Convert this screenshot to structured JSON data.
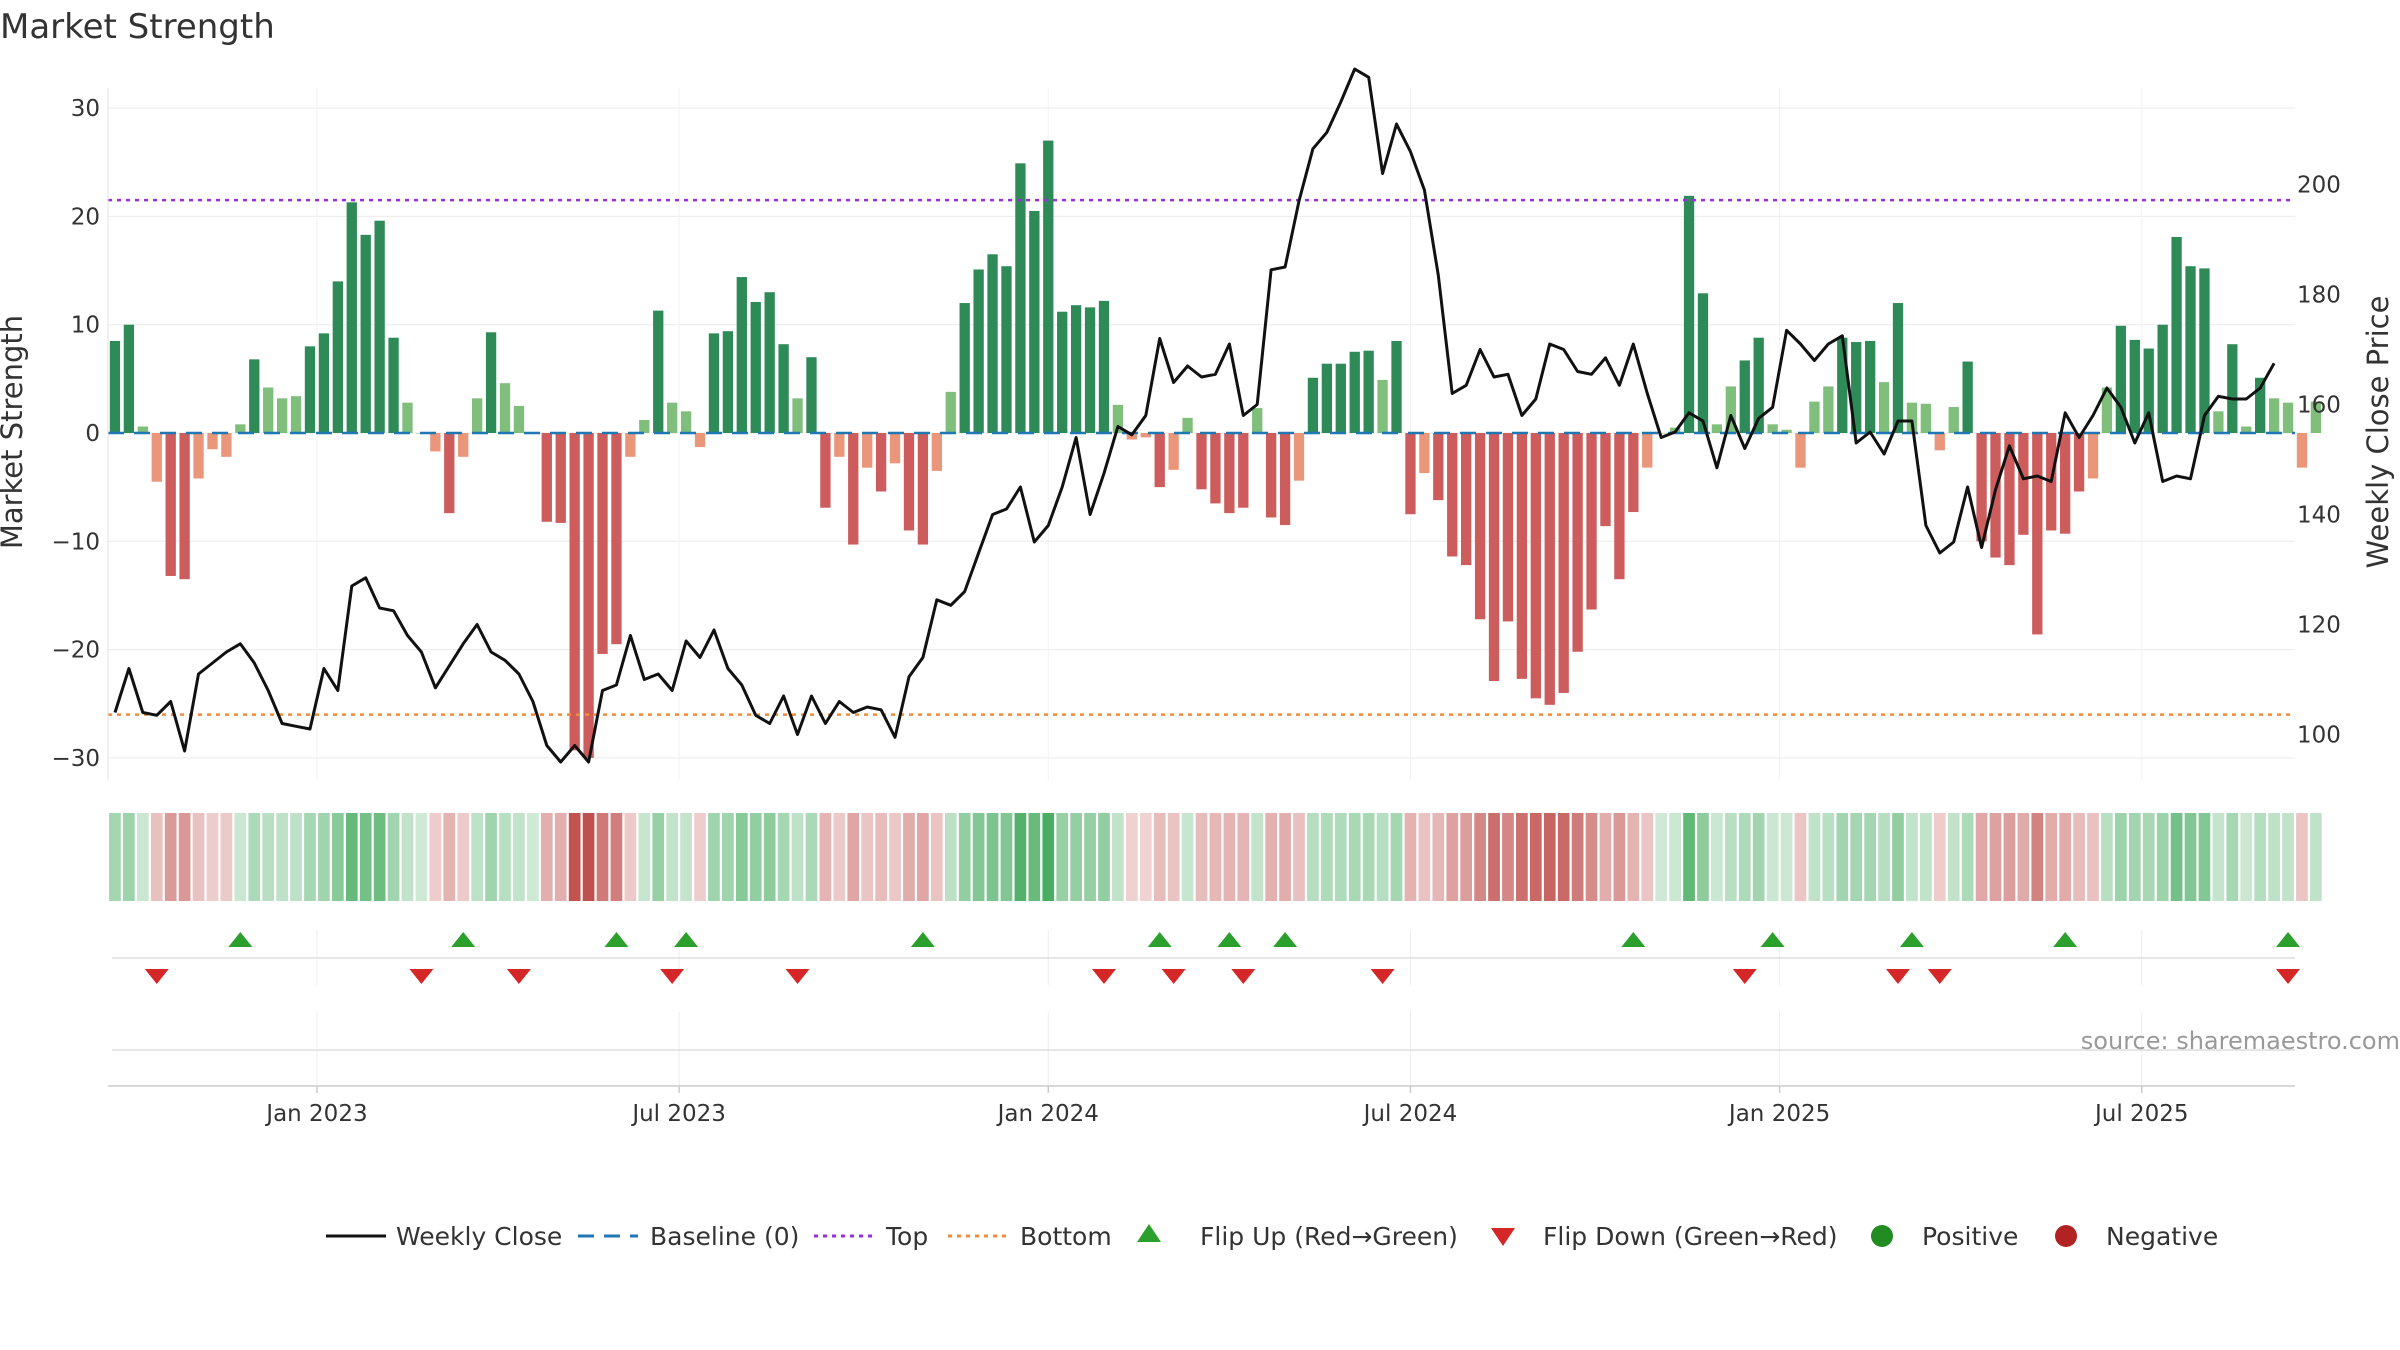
{
  "chart_data": {
    "type": "bar",
    "title": "Market Strength",
    "ylabel_left": "Market Strength",
    "ylabel_right": "Weekly Close Price",
    "ylim_left": [
      -31.5,
      32
    ],
    "ylim_right": [
      92,
      215
    ],
    "left_ticks": [
      30,
      20,
      10,
      0,
      -10,
      -20,
      -30
    ],
    "left_tick_labels": [
      "30",
      "20",
      "10",
      "0",
      "−10",
      "−20",
      "−30"
    ],
    "right_ticks": [
      200,
      180,
      160,
      140,
      120,
      100
    ],
    "right_tick_labels": [
      "200",
      "180",
      "160",
      "140",
      "120",
      "100"
    ],
    "x_range": [
      0,
      157
    ],
    "x_ticks": [
      14.5,
      40.5,
      67.0,
      93.0,
      119.5,
      145.5
    ],
    "x_tick_labels": [
      "Jan 2023",
      "Jul 2023",
      "Jan 2024",
      "Jul 2024",
      "Jan 2025",
      "Jul 2025"
    ],
    "top_line": 21.5,
    "bottom_line": -26,
    "strength": [
      8.5,
      10,
      0.6,
      -4.5,
      -13.2,
      -13.5,
      -4.2,
      -1.5,
      -2.2,
      0.8,
      6.8,
      4.2,
      3.2,
      3.4,
      8,
      9.2,
      14,
      21.3,
      18.3,
      19.6,
      8.8,
      2.8,
      0,
      -1.7,
      -7.4,
      -2.2,
      3.2,
      9.3,
      4.6,
      2.5,
      0,
      -8.2,
      -8.3,
      -29.3,
      -30,
      -20.4,
      -19.5,
      -2.2,
      1.2,
      11.3,
      2.8,
      2,
      -1.3,
      9.2,
      9.4,
      14.4,
      12.1,
      13,
      8.2,
      3.2,
      7,
      -6.9,
      -2.2,
      -10.3,
      -3.2,
      -5.4,
      -2.8,
      -9,
      -10.3,
      -3.5,
      3.8,
      12,
      15.1,
      16.5,
      15.4,
      24.9,
      20.5,
      27,
      11.2,
      11.8,
      11.6,
      12.2,
      2.6,
      -0.6,
      -0.4,
      -5,
      -3.4,
      1.4,
      -5.2,
      -6.5,
      -7.4,
      -6.9,
      2.3,
      -7.8,
      -8.5,
      -4.4,
      5.1,
      6.4,
      6.4,
      7.5,
      7.6,
      4.9,
      8.5,
      -7.5,
      -3.7,
      -6.2,
      -11.4,
      -12.2,
      -17.2,
      -22.9,
      -17.4,
      -22.7,
      -24.5,
      -25.1,
      -24,
      -20.2,
      -16.3,
      -8.6,
      -13.5,
      -7.3,
      -3.2,
      0,
      0.5,
      21.9,
      12.9,
      0.8,
      4.3,
      6.7,
      8.8,
      0.8,
      0.3,
      -3.2,
      2.9,
      4.3,
      8.8,
      8.4,
      8.5,
      4.7,
      12,
      2.8,
      2.7,
      -1.6,
      2.4,
      6.6,
      -10,
      -11.5,
      -12.2,
      -9.4,
      -18.6,
      -9,
      -9.3,
      -5.4,
      -4.2,
      4.2,
      9.9,
      8.6,
      7.8,
      10,
      18.1,
      15.4,
      15.2,
      2,
      8.2,
      0.6,
      5.1,
      3.2,
      2.8,
      -3.2,
      2.9
    ],
    "price": [
      104,
      112,
      104,
      103.5,
      106,
      97,
      111,
      113,
      115,
      116.5,
      113,
      108,
      102,
      101.5,
      101,
      112,
      108,
      127,
      128.5,
      123,
      122.5,
      118,
      115,
      108.5,
      112.5,
      116.5,
      120,
      115,
      113.5,
      111,
      106,
      98,
      95,
      98,
      95,
      108,
      109,
      118,
      110,
      111,
      108,
      117,
      114,
      119,
      112,
      109,
      103.5,
      102,
      107,
      100,
      107,
      102,
      106,
      104,
      105,
      104.5,
      99.5,
      110.5,
      114,
      124.5,
      123.5,
      126,
      133,
      140,
      141,
      145,
      135,
      138,
      145,
      154,
      140,
      147.5,
      156,
      154.5,
      158,
      172,
      164,
      167,
      165,
      165.5,
      171,
      158,
      160,
      184.5,
      185,
      197,
      206.5,
      209.5,
      215,
      221,
      219.5,
      202,
      211,
      206,
      199,
      183.5,
      162,
      163.5,
      170,
      165,
      165.5,
      158,
      161,
      171,
      170,
      166,
      165.5,
      168.5,
      163.5,
      171,
      162,
      154,
      155,
      158.5,
      157,
      148.5,
      158,
      152,
      157.5,
      159.5,
      173.5,
      171,
      168,
      171,
      172.5,
      153,
      155,
      151,
      157,
      157,
      138,
      133,
      135,
      145,
      134,
      144.5,
      152.5,
      146.5,
      147,
      146,
      158.5,
      154,
      158,
      163,
      159.5,
      153,
      158.5,
      146,
      147,
      146.5,
      158,
      161.5,
      161,
      161,
      163,
      167.5
    ],
    "flip_up_x": [
      9,
      25,
      36,
      41,
      58,
      75,
      80,
      84,
      109,
      119,
      129,
      140,
      156
    ],
    "flip_down_x": [
      3,
      22,
      29,
      40,
      49,
      71,
      76,
      81,
      91,
      117,
      128,
      131,
      156
    ],
    "legend": [
      "Weekly Close",
      "Baseline (0)",
      "Top",
      "Bottom",
      "Flip Up (Red→Green)",
      "Flip Down (Green→Red)",
      "Positive",
      "Negative"
    ],
    "colors": {
      "pos_strong": "#2e8b57",
      "pos_light": "#7fbf7b",
      "neg_strong": "#cd5c5c",
      "neg_light": "#e9967a",
      "baseline": "#1f77b4",
      "top": "#9b30d9",
      "bottom": "#f28c38",
      "price": "#111111",
      "flip_up": "#2ca02c",
      "flip_down": "#d62728",
      "positive_dot": "#228b22",
      "negative_dot": "#b22222"
    }
  },
  "source": "source: sharemaestro.com"
}
